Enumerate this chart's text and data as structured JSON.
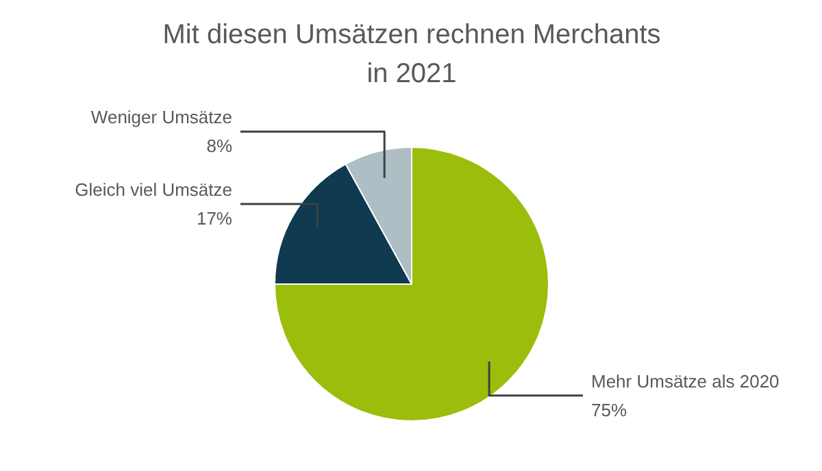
{
  "chart_data": {
    "type": "pie",
    "title": "Mit diesen Umsätzen rechnen Merchants\nin 2021",
    "categories": [
      "Mehr Umsätze als 2020",
      "Gleich viel Umsätze",
      "Weniger Umsätze"
    ],
    "values": [
      75,
      17,
      8
    ],
    "value_labels": [
      "75%",
      "17%",
      "8%"
    ],
    "colors": [
      "#9bbd0c",
      "#0f3a4f",
      "#adbec5"
    ]
  }
}
